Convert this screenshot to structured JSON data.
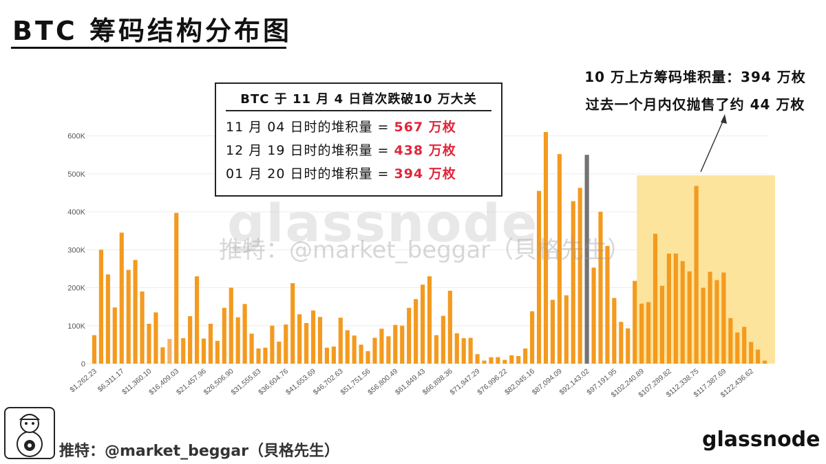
{
  "title": "BTC 筹码结构分布图",
  "info_box": {
    "header": "BTC 于 11 月 4 日首次跌破10 万大关",
    "rows": [
      {
        "label": "11 月 04 日时的堆积量 =",
        "value": "567 万枚"
      },
      {
        "label": "12 月 19 日时的堆积量 =",
        "value": "438 万枚"
      },
      {
        "label": "01 月 20 日时的堆积量 =",
        "value": "394 万枚"
      }
    ]
  },
  "annotation": {
    "line1": "10 万上方筹码堆积量：394 万枚",
    "line2": "过去一个月内仅抛售了约 44 万枚"
  },
  "watermark": {
    "brand": "glassnode",
    "handle": "推特：@market_beggar（貝格先生）"
  },
  "footer": {
    "handle": "推特：@market_beggar（貝格先生）",
    "brand": "glassnode"
  },
  "colors": {
    "bar": "#f39a1f",
    "bar_light": "#f5b266",
    "bar_current": "#737373",
    "highlight": "#fde49c",
    "value_red": "#e0263a"
  },
  "chart_data": {
    "type": "bar",
    "title": "",
    "xlabel": "",
    "ylabel": "",
    "ylim": [
      0,
      650000
    ],
    "yticks": [
      0,
      100000,
      200000,
      300000,
      400000,
      500000,
      600000
    ],
    "ytick_labels": [
      "0",
      "100K",
      "200K",
      "300K",
      "400K",
      "500K",
      "600K"
    ],
    "x_tick_labels": [
      "$1,262.23",
      "$6,311.17",
      "$11,360.10",
      "$16,409.03",
      "$21,457.96",
      "$26,506.90",
      "$31,555.83",
      "$36,604.76",
      "$41,653.69",
      "$46,702.63",
      "$51,751.56",
      "$56,800.49",
      "$61,849.43",
      "$66,898.36",
      "$71,947.29",
      "$76,996.22",
      "$82,045.16",
      "$87,094.09",
      "$92,143.02",
      "$97,191.95",
      "$102,240.89",
      "$107,289.82",
      "$112,338.75",
      "$117,387.69",
      "$122,436.62"
    ],
    "x_start": 1262.23,
    "bin_width": 1262.23,
    "highlight_range": {
      "from_bin": 80,
      "to_bin": 99,
      "label": "10 万上方"
    },
    "current_price_bin": 72,
    "values": [
      75000,
      300000,
      235000,
      148000,
      345000,
      247000,
      273000,
      190000,
      105000,
      135000,
      43000,
      65000,
      397000,
      67000,
      125000,
      230000,
      66000,
      105000,
      60000,
      147000,
      200000,
      122000,
      157000,
      79000,
      40000,
      42000,
      100000,
      58000,
      103000,
      212000,
      130000,
      107000,
      140000,
      123000,
      42000,
      45000,
      121000,
      88000,
      74000,
      50000,
      33000,
      68000,
      92000,
      72000,
      102000,
      100000,
      147000,
      170000,
      208000,
      230000,
      75000,
      126000,
      192000,
      80000,
      67000,
      68000,
      25000,
      8000,
      17000,
      17000,
      10000,
      22000,
      20000,
      40000,
      138000,
      455000,
      610000,
      168000,
      552000,
      180000,
      428000,
      463000,
      550000,
      253000,
      400000,
      310000,
      173000,
      110000,
      93000,
      218000,
      158000,
      162000,
      342000,
      205000,
      290000,
      290000,
      270000,
      243000,
      468000,
      200000,
      242000,
      220000,
      240000,
      120000,
      82000,
      97000,
      57000,
      37000,
      8000
    ]
  }
}
